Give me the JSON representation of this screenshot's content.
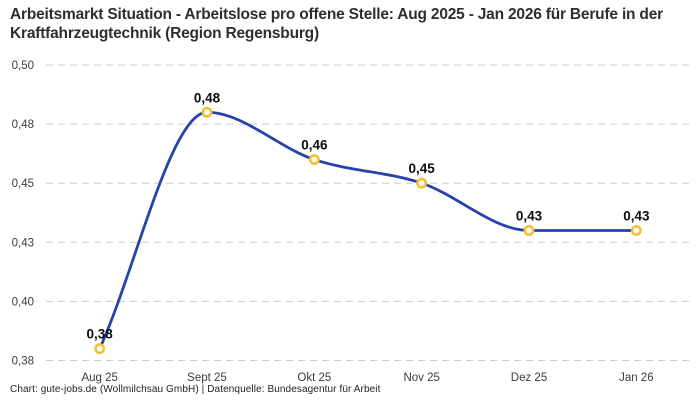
{
  "chart_data": {
    "type": "line",
    "title": "Arbeitsmarkt Situation - Arbeitslose pro offene Stelle: Aug 2025 - Jan 2026 für Berufe in der Kraftfahrzeugtechnik (Region Regensburg)",
    "source_note": "Chart: gute-jobs.de (Wollmilchsau GmbH) | Datenquelle: Bundesagentur für Arbeit",
    "categories": [
      "Aug 25",
      "Sept 25",
      "Okt 25",
      "Nov 25",
      "Dez 25",
      "Jan 26"
    ],
    "series": [
      {
        "name": "Arbeitslose pro offene Stelle",
        "values": [
          0.38,
          0.48,
          0.46,
          0.45,
          0.43,
          0.43
        ],
        "point_labels": [
          "0,38",
          "0,48",
          "0,46",
          "0,45",
          "0,43",
          "0,43"
        ]
      }
    ],
    "ylim": [
      0.375,
      0.5
    ],
    "yticks": [
      {
        "value": 0.5,
        "label": "0,50"
      },
      {
        "value": 0.475,
        "label": "0,48"
      },
      {
        "value": 0.45,
        "label": "0,45"
      },
      {
        "value": 0.425,
        "label": "0,43"
      },
      {
        "value": 0.4,
        "label": "0,40"
      },
      {
        "value": 0.375,
        "label": "0,38"
      }
    ],
    "xlabel": "",
    "ylabel": "",
    "grid": "horizontal-dashed",
    "legend_position": "none",
    "colors": {
      "line": "#2443AC",
      "marker_ring": "#F7BE2B",
      "marker_fill": "#FFFFFF",
      "grid": "#CBCBCB",
      "point_label": "#0D0D0D",
      "axis_text": "#3C3C3C",
      "title_text": "#2E2E2E"
    }
  }
}
